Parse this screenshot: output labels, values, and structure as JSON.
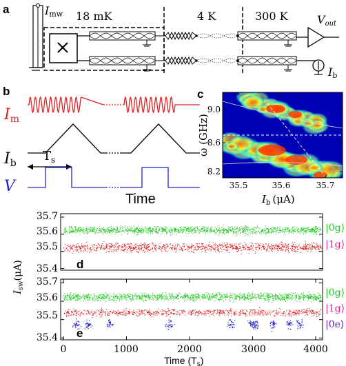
{
  "panel_a": {
    "label": "a",
    "i_mw": "I",
    "i_mw_sub": "mw",
    "temps": [
      "18 mK",
      "4 K",
      "300 K"
    ],
    "v_out": "V",
    "v_out_sub": "out",
    "i_b": "I",
    "i_b_sub": "b"
  },
  "panel_b": {
    "label": "b",
    "i_m": "I",
    "i_m_sub": "m",
    "i_b": "I",
    "i_b_sub": "b",
    "v": "V",
    "ts": "T",
    "ts_sub": "s",
    "time": "Time"
  },
  "panel_c": {
    "label": "c",
    "ylabel": "ω (GHz)",
    "xlabel": "I",
    "xlabel_sub": "b",
    "xlabel_unit": "(μA)",
    "yticks": [
      "9.0",
      "8.6",
      "8.2"
    ],
    "xticks": [
      "35.5",
      "35.6",
      "35.7"
    ],
    "colors": {
      "background": "#0000b4",
      "hot": "#ff3000",
      "mid": "#ffff40",
      "cool": "#40ffc0"
    }
  },
  "panel_d": {
    "label": "d",
    "yticks": [
      "35.7",
      "35.6",
      "35.5",
      "35.4"
    ],
    "legend": [
      "|0g⟩",
      "|1g⟩"
    ],
    "colors": {
      "g0": "#22c822",
      "g1": "#e02020"
    }
  },
  "panel_e": {
    "label": "e",
    "yticks": [
      "35.7",
      "35.6",
      "35.5",
      "35.4"
    ],
    "xticks": [
      "0",
      "1000",
      "2000",
      "3000",
      "4000"
    ],
    "legend": [
      "|0g⟩",
      "|1g⟩",
      "|0e⟩"
    ],
    "colors": {
      "g0": "#22c822",
      "g1": "#e02020",
      "e0": "#2020d0"
    }
  },
  "shared": {
    "ylabel": "I",
    "ylabel_sub": "sw",
    "ylabel_unit": "(μA)",
    "xlabel": "Time (T",
    "xlabel_sub": "s",
    "xlabel_end": ")"
  }
}
